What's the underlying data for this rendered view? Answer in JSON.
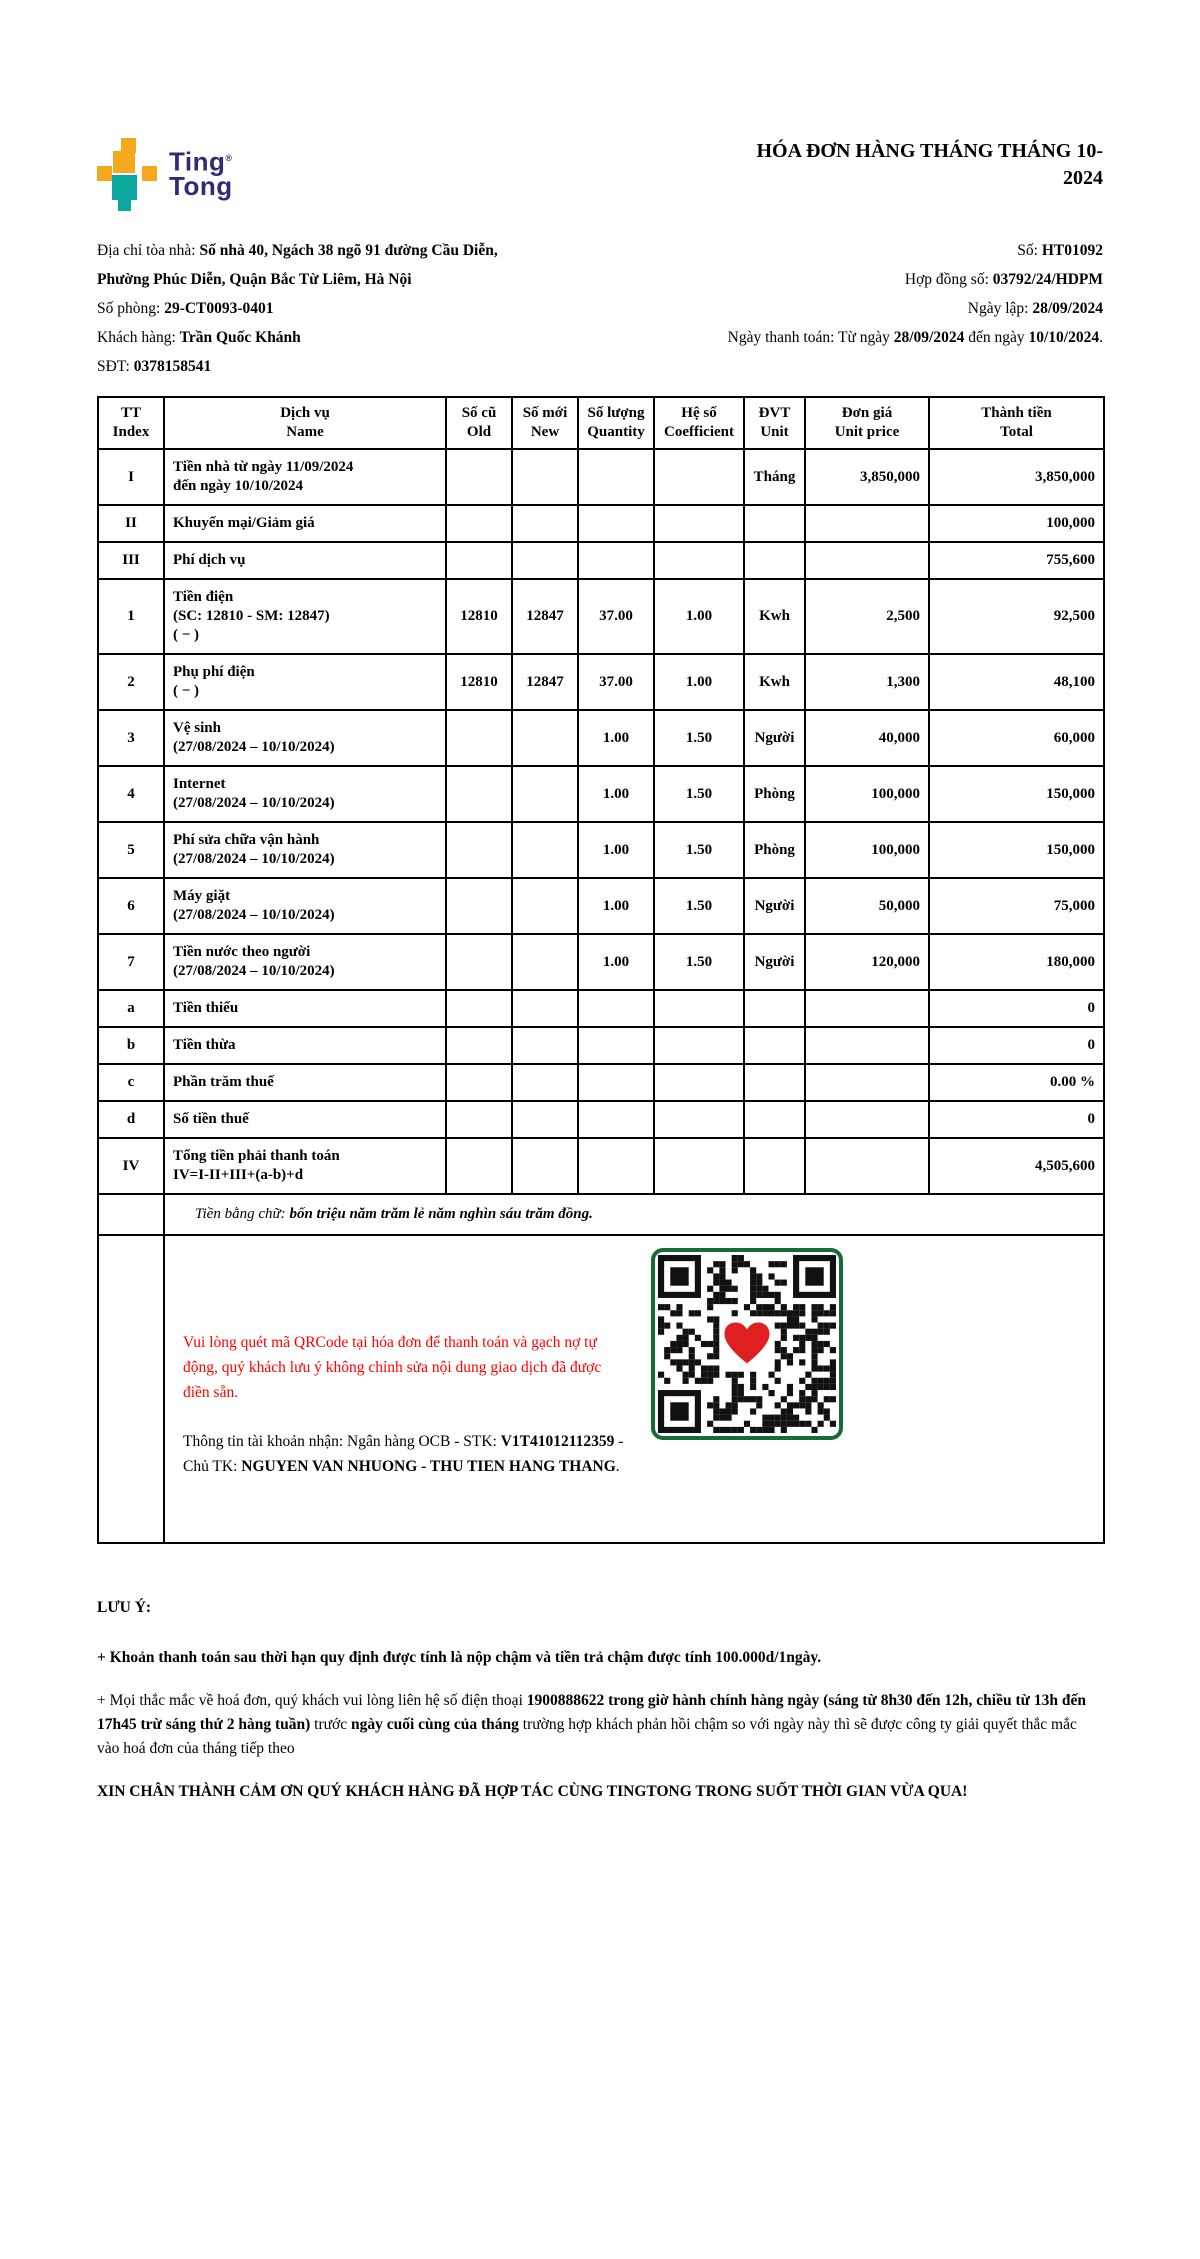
{
  "logo": {
    "line1": "Ting",
    "reg": "®",
    "line2": "Tong"
  },
  "header": {
    "title_line1": "HÓA ĐƠN HÀNG THÁNG THÁNG 10-",
    "title_line2": "2024"
  },
  "info": {
    "left": [
      {
        "parts": [
          {
            "t": "Địa chỉ tòa nhà: "
          },
          {
            "t": "Số nhà 40, Ngách 38 ngõ 91 đường Cầu Diễn,",
            "b": true
          }
        ]
      },
      {
        "parts": [
          {
            "t": "Phường Phúc Diễn, Quận Bắc Từ Liêm, Hà Nội",
            "b": true
          }
        ]
      },
      {
        "parts": [
          {
            "t": "Số phòng: "
          },
          {
            "t": "29-CT0093-0401",
            "b": true
          }
        ]
      },
      {
        "parts": [
          {
            "t": "Khách hàng: "
          },
          {
            "t": "Trần Quốc Khánh",
            "b": true
          }
        ]
      },
      {
        "parts": [
          {
            "t": "SĐT: "
          },
          {
            "t": "0378158541",
            "b": true
          }
        ]
      }
    ],
    "right": [
      {
        "parts": [
          {
            "t": "Số: "
          },
          {
            "t": "HT01092",
            "b": true
          }
        ]
      },
      {
        "parts": [
          {
            "t": "Hợp đồng số: "
          },
          {
            "t": "03792/24/HDPM",
            "b": true
          }
        ]
      },
      {
        "parts": [
          {
            "t": "Ngày lập: "
          },
          {
            "t": "28/09/2024",
            "b": true
          }
        ]
      },
      {
        "parts": [
          {
            "t": "Ngày thanh toán: Từ ngày "
          },
          {
            "t": "28/09/2024",
            "b": true
          },
          {
            "t": " đến ngày "
          },
          {
            "t": "10/10/2024",
            "b": true
          },
          {
            "t": "."
          }
        ]
      }
    ]
  },
  "table": {
    "columns": [
      {
        "key": "index",
        "vi": "TT",
        "en": "Index"
      },
      {
        "key": "name",
        "vi": "Dịch vụ",
        "en": "Name"
      },
      {
        "key": "old",
        "vi": "Số cũ",
        "en": "Old"
      },
      {
        "key": "new",
        "vi": "Số mới",
        "en": "New"
      },
      {
        "key": "quantity",
        "vi": "Số lượng",
        "en": "Quantity"
      },
      {
        "key": "coefficient",
        "vi": "Hệ số",
        "en": "Coefficient"
      },
      {
        "key": "unit",
        "vi": "ĐVT",
        "en": "Unit"
      },
      {
        "key": "unit_price",
        "vi": "Đơn giá",
        "en": "Unit price"
      },
      {
        "key": "total",
        "vi": "Thành tiền",
        "en": "Total"
      }
    ],
    "rows": [
      {
        "tt": "I",
        "name": [
          "Tiền nhà từ ngày 11/09/2024",
          "đến ngày 10/10/2024"
        ],
        "old": "",
        "new": "",
        "qty": "",
        "coef": "",
        "unit": "Tháng",
        "price": "3,850,000",
        "total": "3,850,000"
      },
      {
        "tt": "II",
        "name": [
          "Khuyến mại/Giảm giá"
        ],
        "old": "",
        "new": "",
        "qty": "",
        "coef": "",
        "unit": "",
        "price": "",
        "total": "100,000"
      },
      {
        "tt": "III",
        "name": [
          "Phí dịch vụ"
        ],
        "old": "",
        "new": "",
        "qty": "",
        "coef": "",
        "unit": "",
        "price": "",
        "total": "755,600"
      },
      {
        "tt": "1",
        "name": [
          "Tiền điện",
          "(SC: 12810 - SM: 12847)",
          "( − )"
        ],
        "old": "12810",
        "new": "12847",
        "qty": "37.00",
        "coef": "1.00",
        "unit": "Kwh",
        "price": "2,500",
        "total": "92,500"
      },
      {
        "tt": "2",
        "name": [
          "Phụ phí điện",
          "( − )"
        ],
        "old": "12810",
        "new": "12847",
        "qty": "37.00",
        "coef": "1.00",
        "unit": "Kwh",
        "price": "1,300",
        "total": "48,100"
      },
      {
        "tt": "3",
        "name": [
          "Vệ sinh",
          "(27/08/2024 – 10/10/2024)"
        ],
        "old": "",
        "new": "",
        "qty": "1.00",
        "coef": "1.50",
        "unit": "Người",
        "price": "40,000",
        "total": "60,000"
      },
      {
        "tt": "4",
        "name": [
          "Internet",
          "(27/08/2024 – 10/10/2024)"
        ],
        "old": "",
        "new": "",
        "qty": "1.00",
        "coef": "1.50",
        "unit": "Phòng",
        "price": "100,000",
        "total": "150,000"
      },
      {
        "tt": "5",
        "name": [
          "Phí sửa chữa vận hành",
          "(27/08/2024 – 10/10/2024)"
        ],
        "old": "",
        "new": "",
        "qty": "1.00",
        "coef": "1.50",
        "unit": "Phòng",
        "price": "100,000",
        "total": "150,000"
      },
      {
        "tt": "6",
        "name": [
          "Máy giặt",
          "(27/08/2024 – 10/10/2024)"
        ],
        "old": "",
        "new": "",
        "qty": "1.00",
        "coef": "1.50",
        "unit": "Người",
        "price": "50,000",
        "total": "75,000"
      },
      {
        "tt": "7",
        "name": [
          "Tiền nước theo người",
          "(27/08/2024 – 10/10/2024)"
        ],
        "old": "",
        "new": "",
        "qty": "1.00",
        "coef": "1.50",
        "unit": "Người",
        "price": "120,000",
        "total": "180,000"
      },
      {
        "tt": "a",
        "name": [
          "Tiền thiếu"
        ],
        "old": "",
        "new": "",
        "qty": "",
        "coef": "",
        "unit": "",
        "price": "",
        "total": "0"
      },
      {
        "tt": "b",
        "name": [
          "Tiền thừa"
        ],
        "old": "",
        "new": "",
        "qty": "",
        "coef": "",
        "unit": "",
        "price": "",
        "total": "0"
      },
      {
        "tt": "c",
        "name": [
          "Phần trăm thuế"
        ],
        "old": "",
        "new": "",
        "qty": "",
        "coef": "",
        "unit": "",
        "price": "",
        "total": "0.00 %"
      },
      {
        "tt": "d",
        "name": [
          "Số tiền thuế"
        ],
        "old": "",
        "new": "",
        "qty": "",
        "coef": "",
        "unit": "",
        "price": "",
        "total": "0"
      },
      {
        "tt": "IV",
        "name": [
          "Tổng tiền phải thanh toán",
          "IV=I-II+III+(a-b)+d"
        ],
        "old": "",
        "new": "",
        "qty": "",
        "coef": "",
        "unit": "",
        "price": "",
        "total": "4,505,600"
      }
    ],
    "amount_in_words": {
      "parts": [
        {
          "t": "Tiền bằng chữ: ",
          "i": true
        },
        {
          "t": "bốn triệu năm trăm lẻ năm nghìn sáu trăm đồng.",
          "b": true,
          "i": true
        }
      ]
    }
  },
  "qr_section": {
    "note": "Vui lòng quét mã QRCode tại hóa đơn để thanh toán và gạch nợ tự động, quý khách lưu ý không chỉnh sửa nội dung giao dịch đã được điền sẵn.",
    "account_parts": [
      {
        "t": "Thông tin tài khoản nhận: Ngân hàng OCB - STK: "
      },
      {
        "t": "V1T41012112359",
        "b": true
      },
      {
        "t": " - Chủ TK: "
      },
      {
        "t": "NGUYEN VAN NHUONG - THU TIEN HANG THANG",
        "b": true
      },
      {
        "t": "."
      }
    ]
  },
  "footer": {
    "heading": "LƯU Ý:",
    "paragraphs": [
      {
        "parts": [
          {
            "t": "+ Khoản thanh toán sau thời hạn quy định được tính là nộp chậm và tiền trả chậm được tính 100.000d/1ngày.",
            "b": true
          }
        ]
      },
      {
        "parts": [
          {
            "t": "+ Mọi thắc mắc về hoá đơn, quý khách vui lòng liên hệ số điện thoại "
          },
          {
            "t": "1900888622 trong giờ hành chính hàng ngày (sáng từ 8h30 đến 12h, chiều từ 13h đến 17h45 trừ sáng thứ 2 hàng tuần)",
            "b": true
          },
          {
            "t": " trước "
          },
          {
            "t": "ngày cuối cùng của tháng",
            "b": true
          },
          {
            "t": " trường hợp khách phản hồi chậm so với ngày này thì sẽ được công ty giải quyết thắc mắc vào hoá đơn của tháng tiếp theo"
          }
        ]
      },
      {
        "parts": [
          {
            "t": "XIN CHÂN THÀNH CẢM ƠN QUÝ KHÁCH HÀNG ĐÃ HỢP TÁC CÙNG TINGTONG TRONG SUỐT THỜI GIAN VỪA QUA!",
            "b": true
          }
        ]
      }
    ]
  },
  "colors": {
    "accent_yellow": "#F6A81C",
    "accent_teal": "#0AA79C",
    "logo_navy": "#2F2B74",
    "alert_red": "#FF0000",
    "qr_frame_green": "#166B36",
    "heart_red": "#E01F1F"
  }
}
